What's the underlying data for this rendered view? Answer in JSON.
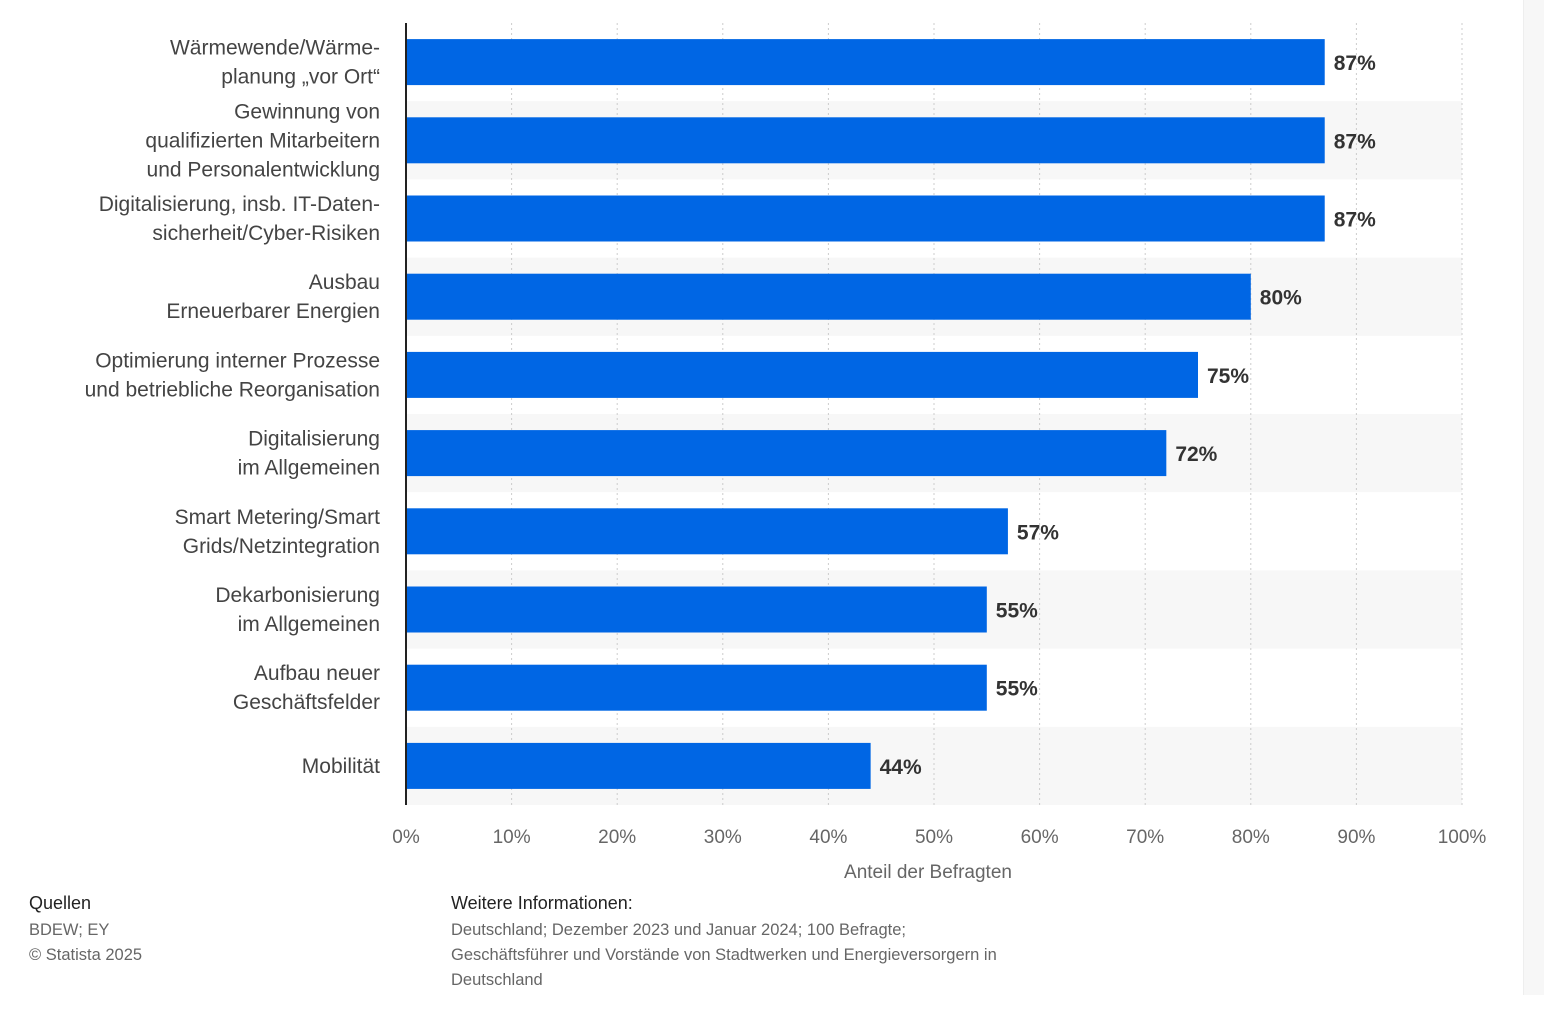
{
  "chart_data": {
    "type": "bar",
    "orientation": "horizontal",
    "categories": [
      [
        "Wärmewende/Wärme-",
        "planung „vor Ort“"
      ],
      [
        "Gewinnung von",
        "qualifizierten Mitarbeitern",
        "und Personalentwicklung"
      ],
      [
        "Digitalisierung, insb. IT-Daten-",
        "sicherheit/Cyber-Risiken"
      ],
      [
        "Ausbau",
        "Erneuerbarer Energien"
      ],
      [
        "Optimierung interner Prozesse",
        "und betriebliche Reorganisation"
      ],
      [
        "Digitalisierung",
        "im Allgemeinen"
      ],
      [
        "Smart Metering/Smart",
        "Grids/Netzintegration"
      ],
      [
        "Dekarbonisierung",
        "im Allgemeinen"
      ],
      [
        "Aufbau neuer",
        "Geschäftsfelder"
      ],
      [
        "Mobilität"
      ]
    ],
    "values": [
      87,
      87,
      87,
      80,
      75,
      72,
      57,
      55,
      55,
      44
    ],
    "value_labels": [
      "87%",
      "87%",
      "87%",
      "80%",
      "75%",
      "72%",
      "57%",
      "55%",
      "55%",
      "44%"
    ],
    "xticks": [
      0,
      10,
      20,
      30,
      40,
      50,
      60,
      70,
      80,
      90,
      100
    ],
    "xtick_labels": [
      "0%",
      "10%",
      "20%",
      "30%",
      "40%",
      "50%",
      "60%",
      "70%",
      "80%",
      "90%",
      "100%"
    ],
    "xlim": [
      0,
      100
    ],
    "xlabel": "Anteil der Befragten",
    "grid": "vertical dotted",
    "bar_color": "#0066e4",
    "band_color": "#f7f7f7"
  },
  "footer": {
    "sources_heading": "Quellen",
    "sources_lines": [
      "BDEW; EY",
      "© Statista 2025"
    ],
    "info_heading": "Weitere Informationen:",
    "info_lines": [
      "Deutschland; Dezember 2023 und Januar 2024; 100 Befragte;",
      "Geschäftsführer und Vorstände von Stadtwerken und Energieversorgern in",
      "Deutschland"
    ]
  }
}
